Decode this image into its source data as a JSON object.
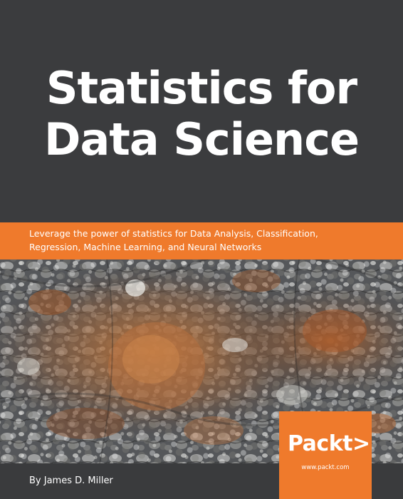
{
  "cover": {
    "title_lines": [
      "Statistics for",
      "Data Science"
    ],
    "subtitle_lines": [
      "Leverage the power of statistics for Data Analysis, Classification,",
      "Regression, Machine Learning, and Neural Networks"
    ],
    "author": "By James D. Miller",
    "publisher": {
      "brand": "Packt>",
      "url": "www.packt.com"
    }
  },
  "colors": {
    "background": "#3a3b3d",
    "accent": "#ef7a2c",
    "text": "#ffffff"
  }
}
